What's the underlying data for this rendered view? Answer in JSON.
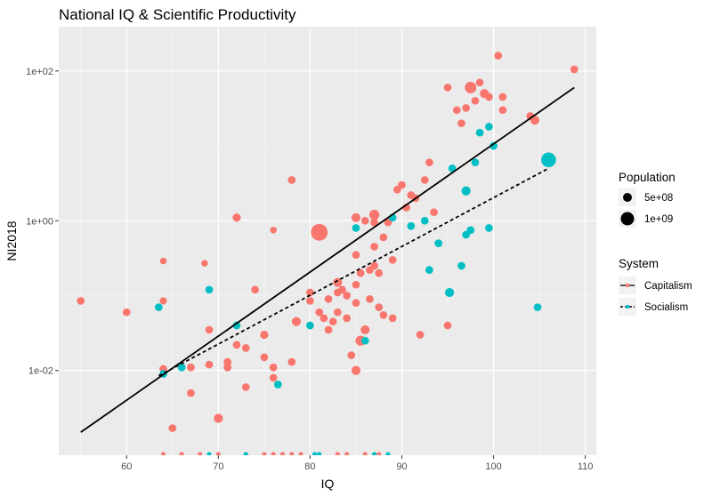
{
  "chart_data": {
    "type": "scatter",
    "title": "National IQ & Scientific Productivity",
    "xlabel": "IQ",
    "ylabel": "NI2018",
    "x_range": [
      52.6,
      111.2
    ],
    "y_scale": "log10",
    "y_range": [
      0.00074,
      390
    ],
    "x_ticks": [
      60,
      70,
      80,
      90,
      100,
      110
    ],
    "x_tick_labels": [
      "60",
      "70",
      "80",
      "90",
      "100",
      "110"
    ],
    "y_ticks": [
      0.01,
      1,
      100
    ],
    "y_tick_labels": [
      "1e-02",
      "1e+00",
      "1e+02"
    ],
    "grid": true,
    "legend_position": "right",
    "legend": {
      "size_title": "Population",
      "size_entries": [
        {
          "label": "5e+08",
          "value": 500000000
        },
        {
          "label": "1e+09",
          "value": 1000000000
        }
      ],
      "color_title": "System",
      "color_entries": [
        {
          "label": "Capitalism",
          "color": "#F8766D",
          "linetype": "solid"
        },
        {
          "label": "Socialism",
          "color": "#00BFC4",
          "linetype": "dashed"
        }
      ]
    },
    "colors": {
      "Capitalism": "#F8766D",
      "Socialism": "#00BFC4",
      "panel": "#EBEBEB",
      "grid": "#FFFFFF"
    },
    "fit_lines": [
      {
        "name": "Capitalism",
        "x": [
          55,
          108.8
        ],
        "y": [
          0.0015,
          60
        ],
        "linetype": "solid"
      },
      {
        "name": "Socialism",
        "x": [
          63.5,
          106
        ],
        "y": [
          0.0085,
          5
        ],
        "linetype": "dashed"
      }
    ],
    "series": [
      {
        "name": "Capitalism",
        "points": [
          [
            55,
            0.085,
            25
          ],
          [
            60,
            0.06,
            25
          ],
          [
            64,
            0.29,
            15
          ],
          [
            64,
            0.085,
            20
          ],
          [
            64,
            0.0105,
            25
          ],
          [
            65,
            0.0017,
            25
          ],
          [
            67,
            0.011,
            25
          ],
          [
            67,
            0.005,
            25
          ],
          [
            68.5,
            0.27,
            15
          ],
          [
            69,
            0.035,
            25
          ],
          [
            69,
            0.012,
            25
          ],
          [
            70,
            0.0023,
            40
          ],
          [
            71,
            0.013,
            25
          ],
          [
            71,
            0.011,
            25
          ],
          [
            72,
            1.1,
            30
          ],
          [
            72,
            0.022,
            25
          ],
          [
            73,
            0.02,
            25
          ],
          [
            75,
            0.03,
            30
          ],
          [
            75,
            0.015,
            25
          ],
          [
            76,
            0.75,
            15
          ],
          [
            76,
            0.011,
            25
          ],
          [
            76,
            0.008,
            25
          ],
          [
            78,
            0.013,
            25
          ],
          [
            78.5,
            0.045,
            40
          ],
          [
            80,
            0.11,
            25
          ],
          [
            80,
            0.085,
            25
          ],
          [
            81,
            0.7,
            200
          ],
          [
            81,
            0.06,
            25
          ],
          [
            81.5,
            0.05,
            25
          ],
          [
            82,
            0.09,
            25
          ],
          [
            82,
            0.035,
            25
          ],
          [
            82.5,
            0.045,
            25
          ],
          [
            83,
            0.15,
            40
          ],
          [
            83,
            0.11,
            25
          ],
          [
            83,
            0.06,
            25
          ],
          [
            83.5,
            0.12,
            25
          ],
          [
            84,
            0.1,
            25
          ],
          [
            84,
            0.05,
            25
          ],
          [
            84.5,
            0.016,
            25
          ],
          [
            85,
            1.1,
            40
          ],
          [
            85,
            0.35,
            25
          ],
          [
            85,
            0.14,
            25
          ],
          [
            85,
            0.08,
            25
          ],
          [
            85,
            0.01,
            40
          ],
          [
            85.5,
            0.2,
            25
          ],
          [
            85.5,
            0.025,
            55
          ],
          [
            86,
            1.0,
            25
          ],
          [
            86,
            0.035,
            40
          ],
          [
            86.5,
            0.22,
            25
          ],
          [
            86.5,
            0.09,
            25
          ],
          [
            87,
            1.2,
            55
          ],
          [
            87,
            0.95,
            25
          ],
          [
            87,
            0.45,
            25
          ],
          [
            87,
            0.25,
            25
          ],
          [
            87.5,
            0.2,
            25
          ],
          [
            87.5,
            0.07,
            25
          ],
          [
            88,
            0.6,
            25
          ],
          [
            88,
            0.055,
            25
          ],
          [
            88.5,
            0.95,
            25
          ],
          [
            89,
            0.3,
            25
          ],
          [
            89,
            0.05,
            25
          ],
          [
            89.5,
            2.6,
            25
          ],
          [
            90,
            3.0,
            25
          ],
          [
            90.5,
            1.5,
            25
          ],
          [
            91,
            2.2,
            25
          ],
          [
            91.5,
            2.0,
            25
          ],
          [
            92,
            0.03,
            25
          ],
          [
            92.5,
            3.5,
            25
          ],
          [
            93,
            6.0,
            25
          ],
          [
            93.5,
            1.3,
            25
          ],
          [
            95,
            60,
            25
          ],
          [
            95,
            0.04,
            25
          ],
          [
            96,
            30,
            25
          ],
          [
            96.5,
            20,
            25
          ],
          [
            97,
            32,
            25
          ],
          [
            97.5,
            60,
            80
          ],
          [
            98,
            40,
            25
          ],
          [
            98.5,
            70,
            25
          ],
          [
            99,
            50,
            40
          ],
          [
            99.5,
            45,
            25
          ],
          [
            100.5,
            160,
            25
          ],
          [
            101,
            30,
            25
          ],
          [
            101,
            45,
            25
          ],
          [
            104,
            25,
            25
          ],
          [
            104.5,
            22,
            40
          ],
          [
            108.8,
            105,
            25
          ],
          [
            78,
            3.5,
            25
          ],
          [
            74,
            0.12,
            25
          ],
          [
            73,
            0.006,
            25
          ]
        ]
      },
      {
        "name": "Socialism",
        "points": [
          [
            63.5,
            0.07,
            25
          ],
          [
            64,
            0.009,
            25
          ],
          [
            66,
            0.011,
            25
          ],
          [
            69,
            0.12,
            25
          ],
          [
            72,
            0.04,
            25
          ],
          [
            76.5,
            0.0065,
            25
          ],
          [
            80,
            0.04,
            25
          ],
          [
            85,
            0.8,
            25
          ],
          [
            86,
            0.025,
            25
          ],
          [
            89,
            1.1,
            25
          ],
          [
            91,
            0.85,
            25
          ],
          [
            92.5,
            1.0,
            25
          ],
          [
            93,
            0.22,
            25
          ],
          [
            94,
            0.5,
            25
          ],
          [
            95.5,
            5.0,
            25
          ],
          [
            95.2,
            0.11,
            40
          ],
          [
            96.5,
            0.25,
            25
          ],
          [
            97,
            2.5,
            40
          ],
          [
            97.5,
            0.75,
            25
          ],
          [
            98,
            6.0,
            25
          ],
          [
            98.5,
            15,
            25
          ],
          [
            99.5,
            0.8,
            25
          ],
          [
            100,
            10,
            25
          ],
          [
            104.8,
            0.07,
            25
          ],
          [
            106,
            6.5,
            150
          ],
          [
            99.5,
            18,
            25
          ],
          [
            97,
            0.65,
            25
          ]
        ]
      }
    ]
  }
}
